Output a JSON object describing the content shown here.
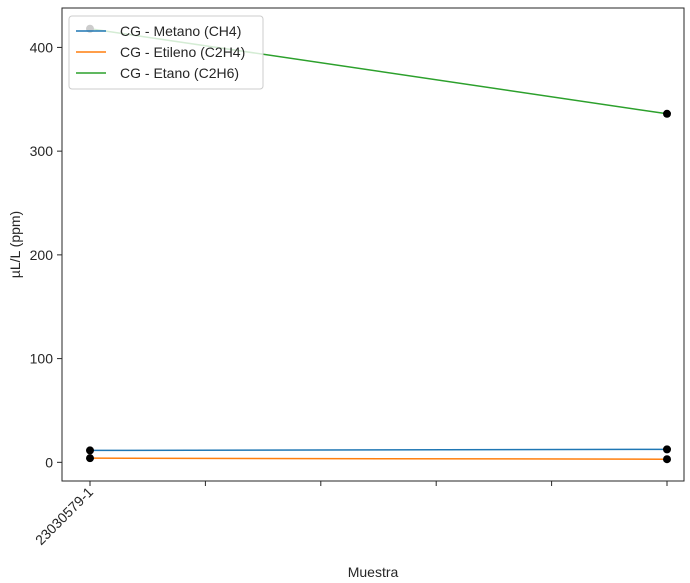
{
  "chart_data": {
    "type": "line",
    "title": "",
    "xlabel": "Muestra",
    "ylabel": "µL/L (ppm)",
    "xticklabels": [
      "23030579-1",
      "",
      "",
      "",
      "",
      ""
    ],
    "yticks": [
      0,
      100,
      200,
      300,
      400
    ],
    "ylim": [
      -18,
      438
    ],
    "grid": false,
    "legend_position": "top-left",
    "series": [
      {
        "name": "CG - Metano (CH4)",
        "color": "#1f77b4",
        "values": [
          11.5,
          12.5
        ]
      },
      {
        "name": "CG - Etileno (C2H4)",
        "color": "#ff7f0e",
        "values": [
          4,
          3
        ]
      },
      {
        "name": "CG - Etano (C2H6)",
        "color": "#2ca02c",
        "values": [
          418,
          336
        ]
      }
    ],
    "marker_color": "#000000"
  }
}
